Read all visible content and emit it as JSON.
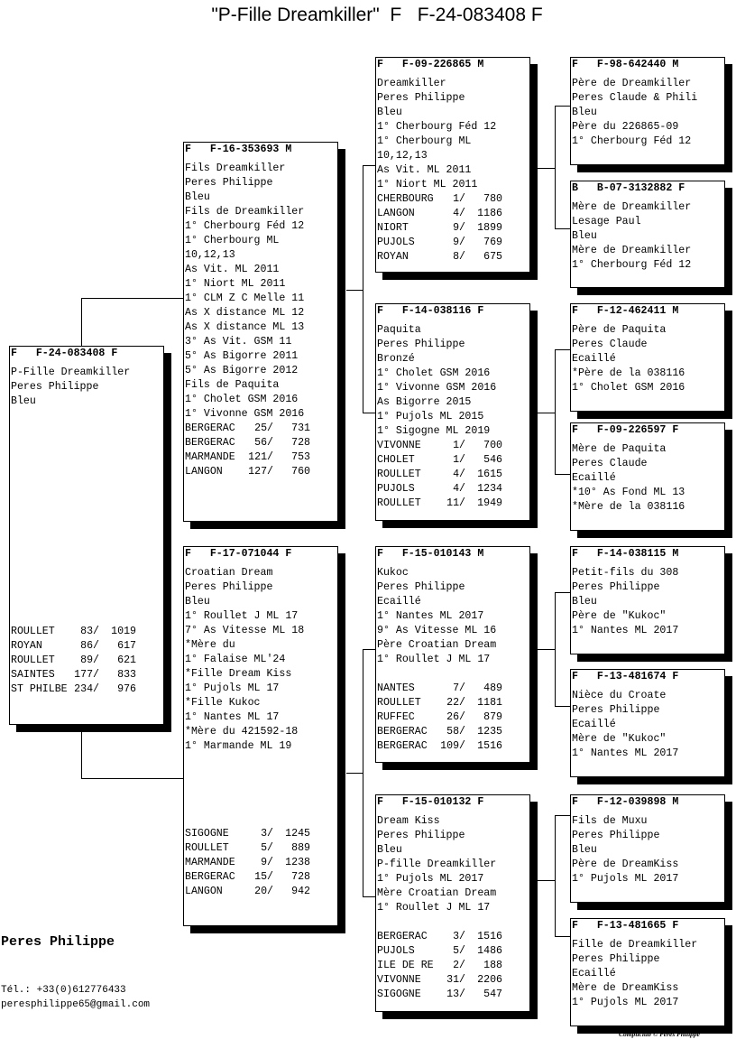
{
  "title": "\"P-Fille Dreamkiller\"  F   F-24-083408 F",
  "boxes": {
    "subject": {
      "header": "F   F-24-083408 F",
      "lines": [
        "P-Fille Dreamkiller",
        "Peres Philippe",
        "Bleu"
      ],
      "results": [
        {
          "place": "ROULLET",
          "rank": "83/",
          "total": "1019"
        },
        {
          "place": "ROYAN",
          "rank": "86/",
          "total": "617"
        },
        {
          "place": "ROULLET",
          "rank": "89/",
          "total": "621"
        },
        {
          "place": "SAINTES",
          "rank": "177/",
          "total": "833"
        },
        {
          "place": "ST PHILBE",
          "rank": "234/",
          "total": "976"
        }
      ]
    },
    "sire": {
      "header": "F   F-16-353693 M",
      "lines": [
        "Fils Dreamkiller",
        "Peres Philippe",
        "Bleu",
        "Fils de Dreamkiller",
        "1° Cherbourg Féd 12",
        "1° Cherbourg ML",
        "10,12,13",
        "As Vit. ML 2011",
        "1° Niort ML 2011",
        "1° CLM Z C Melle 11",
        "As X distance ML 12",
        "As X distance ML 13",
        "3° As Vit. GSM 11",
        "5° As Bigorre 2011",
        "5° As Bigorre 2012",
        "Fils de Paquita",
        "1° Cholet GSM 2016",
        "1° Vivonne GSM 2016"
      ],
      "results": [
        {
          "place": "BERGERAC",
          "rank": "25/",
          "total": "731"
        },
        {
          "place": "BERGERAC",
          "rank": "56/",
          "total": "728"
        },
        {
          "place": "MARMANDE",
          "rank": "121/",
          "total": "753"
        },
        {
          "place": "LANGON",
          "rank": "127/",
          "total": "760"
        }
      ]
    },
    "dam": {
      "header": "F   F-17-071044 F",
      "lines": [
        "Croatian Dream",
        "Peres Philippe",
        "Bleu",
        "1° Roullet J ML 17",
        "7° As Vitesse ML 18",
        "*Mère du",
        "1° Falaise ML'24",
        "*Fille Dream Kiss",
        "1° Pujols ML 17",
        "*Fille Kukoc",
        "1° Nantes ML 17",
        "*Mère du 421592-18",
        "1° Marmande ML 19"
      ],
      "results": [
        {
          "place": "SIGOGNE",
          "rank": "3/",
          "total": "1245"
        },
        {
          "place": "ROULLET",
          "rank": "5/",
          "total": "889"
        },
        {
          "place": "MARMANDE",
          "rank": "9/",
          "total": "1238"
        },
        {
          "place": "BERGERAC",
          "rank": "15/",
          "total": "728"
        },
        {
          "place": "LANGON",
          "rank": "20/",
          "total": "942"
        }
      ]
    },
    "ss": {
      "header": "F   F-09-226865 M",
      "lines": [
        "Dreamkiller",
        "Peres Philippe",
        "Bleu",
        "1° Cherbourg Féd 12",
        "1° Cherbourg ML",
        "10,12,13",
        "As Vit. ML 2011",
        "1° Niort ML 2011"
      ],
      "results": [
        {
          "place": "CHERBOURG",
          "rank": "1/",
          "total": "780"
        },
        {
          "place": "LANGON",
          "rank": "4/",
          "total": "1186"
        },
        {
          "place": "NIORT",
          "rank": "9/",
          "total": "1899"
        },
        {
          "place": "PUJOLS",
          "rank": "9/",
          "total": "769"
        },
        {
          "place": "ROYAN",
          "rank": "8/",
          "total": "675"
        }
      ]
    },
    "sd": {
      "header": "F   F-14-038116 F",
      "lines": [
        "Paquita",
        "Peres Philippe",
        "Bronzé",
        "1° Cholet GSM 2016",
        "1° Vivonne GSM 2016",
        "As Bigorre 2015",
        "1° Pujols ML 2015",
        "1° Sigogne ML 2019"
      ],
      "results": [
        {
          "place": "VIVONNE",
          "rank": "1/",
          "total": "700"
        },
        {
          "place": "CHOLET",
          "rank": "1/",
          "total": "546"
        },
        {
          "place": "ROULLET",
          "rank": "4/",
          "total": "1615"
        },
        {
          "place": "PUJOLS",
          "rank": "4/",
          "total": "1234"
        },
        {
          "place": "ROULLET",
          "rank": "11/",
          "total": "1949"
        }
      ]
    },
    "ds": {
      "header": "F   F-15-010143 M",
      "lines": [
        "Kukoc",
        "Peres Philippe",
        "Ecaillé",
        "1° Nantes ML 2017",
        "9° As Vitesse ML 16",
        "Père Croatian Dream",
        "1° Roullet J ML 17"
      ],
      "results": [
        {
          "place": "NANTES",
          "rank": "7/",
          "total": "489"
        },
        {
          "place": "ROULLET",
          "rank": "22/",
          "total": "1181"
        },
        {
          "place": "RUFFEC",
          "rank": "26/",
          "total": "879"
        },
        {
          "place": "BERGERAC",
          "rank": "58/",
          "total": "1235"
        },
        {
          "place": "BERGERAC",
          "rank": "109/",
          "total": "1516"
        }
      ]
    },
    "dd": {
      "header": "F   F-15-010132 F",
      "lines": [
        "Dream Kiss",
        "Peres Philippe",
        "Bleu",
        "P-fille Dreamkiller",
        "1° Pujols ML 2017",
        "Mère Croatian Dream",
        "1° Roullet J ML 17"
      ],
      "results": [
        {
          "place": "BERGERAC",
          "rank": "3/",
          "total": "1516"
        },
        {
          "place": "PUJOLS",
          "rank": "5/",
          "total": "1486"
        },
        {
          "place": "ILE DE RE",
          "rank": "2/",
          "total": "188"
        },
        {
          "place": "VIVONNE",
          "rank": "31/",
          "total": "2206"
        },
        {
          "place": "SIGOGNE",
          "rank": "13/",
          "total": "547"
        }
      ]
    },
    "sss": {
      "header": "F   F-98-642440 M",
      "lines": [
        "Père de Dreamkiller",
        "Peres Claude & Phili",
        "Bleu",
        "Père du 226865-09",
        "1° Cherbourg Féd 12"
      ],
      "results": []
    },
    "ssd": {
      "header": "B   B-07-3132882 F",
      "lines": [
        "Mère de Dreamkiller",
        "Lesage Paul",
        "Bleu",
        "Mère de Dreamkiller",
        "1° Cherbourg Féd 12"
      ],
      "results": []
    },
    "sds": {
      "header": "F   F-12-462411 M",
      "lines": [
        "Père de Paquita",
        "Peres Claude",
        "Ecaillé",
        "*Père de la 038116",
        "1° Cholet GSM 2016"
      ],
      "results": []
    },
    "sdd": {
      "header": "F   F-09-226597 F",
      "lines": [
        "Mère de Paquita",
        "Peres Claude",
        "Ecaillé",
        "*10° As Fond ML 13",
        "*Mère de la 038116"
      ],
      "results": []
    },
    "dss": {
      "header": "F   F-14-038115 M",
      "lines": [
        "Petit-fils du 308",
        "Peres Philippe",
        "Bleu",
        "Père de \"Kukoc\"",
        "1° Nantes ML 2017"
      ],
      "results": []
    },
    "dsd": {
      "header": "F   F-13-481674 F",
      "lines": [
        "Nièce du Croate",
        "Peres Philippe",
        "Ecaillé",
        "Mère de \"Kukoc\"",
        "1° Nantes ML 2017"
      ],
      "results": []
    },
    "dds": {
      "header": "F   F-12-039898 M",
      "lines": [
        "Fils de Muxu",
        "Peres Philippe",
        "Bleu",
        "Père de DreamKiss",
        "1° Pujols ML 2017"
      ],
      "results": []
    },
    "ddd": {
      "header": "F   F-13-481665 F",
      "lines": [
        "Fille de Dreamkiller",
        "Peres Philippe",
        "Ecaillé",
        "Mère de DreamKiss",
        "1° Pujols ML 2017"
      ],
      "results": []
    }
  },
  "footer": {
    "owner": "Peres Philippe",
    "phone": "Tél.: +33(0)612776433",
    "email": "peresphilippe65@gmail.com",
    "copyright": "Compuclub © Peres Philippe"
  }
}
